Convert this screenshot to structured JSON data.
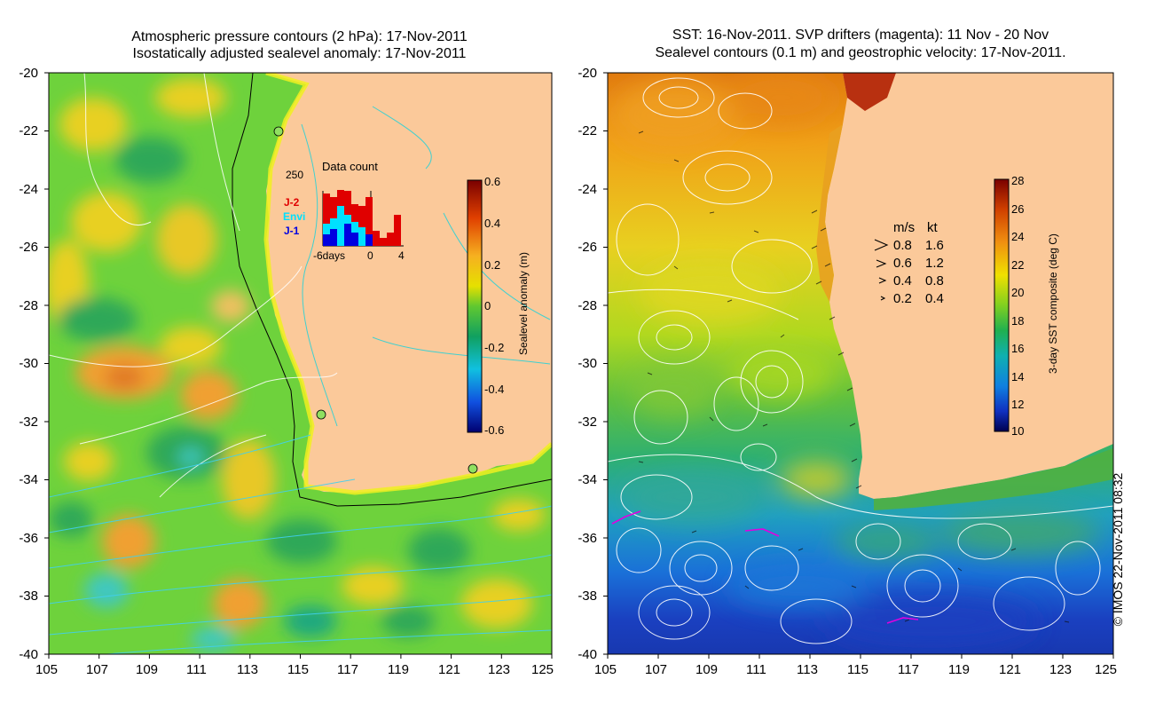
{
  "left_panel": {
    "title_line1": "Atmospheric pressure contours (2 hPa): 17-Nov-2011",
    "title_line2": "Isostatically adjusted sealevel anomaly: 17-Nov-2011",
    "x_ticks": [
      "105",
      "107",
      "109",
      "111",
      "113",
      "115",
      "117",
      "119",
      "121",
      "123",
      "125"
    ],
    "y_ticks": [
      "-20",
      "-22",
      "-24",
      "-26",
      "-28",
      "-30",
      "-32",
      "-34",
      "-36",
      "-38",
      "-40"
    ],
    "colorbar_label": "Sealevel anomaly (m)",
    "colorbar_ticks": [
      "0.6",
      "0.4",
      "0.2",
      "0",
      "-0.2",
      "-0.4",
      "-0.6"
    ],
    "inset": {
      "title": "Data count",
      "y_max_label": "250",
      "x_tick_labels": [
        "-6days",
        "0",
        "4"
      ],
      "legend": [
        {
          "label": "J-2",
          "color": "#e00000"
        },
        {
          "label": "Envi",
          "color": "#00e0ff"
        },
        {
          "label": "J-1",
          "color": "#0000e0"
        }
      ]
    }
  },
  "right_panel": {
    "title_line1": "SST: 16-Nov-2011. SVP drifters (magenta): 11 Nov - 20 Nov",
    "title_line2": "Sealevel contours (0.1 m) and geostrophic velocity: 17-Nov-2011.",
    "x_ticks": [
      "105",
      "107",
      "109",
      "111",
      "113",
      "115",
      "117",
      "119",
      "121",
      "123",
      "125"
    ],
    "y_ticks": [
      "-20",
      "-22",
      "-24",
      "-26",
      "-28",
      "-30",
      "-32",
      "-34",
      "-36",
      "-38",
      "-40"
    ],
    "colorbar_label": "3-day SST composite (deg C)",
    "colorbar_ticks": [
      "28",
      "26",
      "24",
      "22",
      "20",
      "18",
      "16",
      "14",
      "12",
      "10"
    ],
    "velocity_legend": {
      "header_ms": "m/s",
      "header_kt": "kt",
      "rows": [
        {
          "ms": "0.8",
          "kt": "1.6"
        },
        {
          "ms": "0.6",
          "kt": "1.2"
        },
        {
          "ms": "0.4",
          "kt": "0.8"
        },
        {
          "ms": "0.2",
          "kt": "0.4"
        }
      ]
    }
  },
  "credit": "© IMOS 22-Nov-2011 08:32",
  "colors": {
    "land": "#fbc99a",
    "ssa_background": "#6ed23c",
    "sst_warm": "#e8a020",
    "sst_cold": "#1e78d0"
  }
}
